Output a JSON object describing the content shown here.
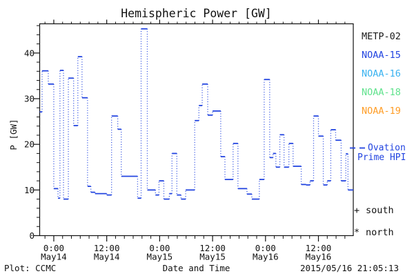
{
  "footer": {
    "left": "Plot: CCMC",
    "right": "2015/05/16 21:05:13"
  },
  "legend": {
    "satellites": [
      {
        "label": "METP-02",
        "color": "#1a1a1a"
      },
      {
        "label": "NOAA-15",
        "color": "#2244e0"
      },
      {
        "label": "NOAA-16",
        "color": "#38b2f0"
      },
      {
        "label": "NOAA-18",
        "color": "#5fe28c"
      },
      {
        "label": "NOAA-19",
        "color": "#ff9d26"
      }
    ],
    "model": {
      "label_line1": "Ovation",
      "label_line2": "Prime HPI",
      "color": "#2244e0"
    },
    "markers": [
      {
        "symbol": "+",
        "label": "south"
      },
      {
        "symbol": "*",
        "label": "north"
      }
    ]
  },
  "chart_data": {
    "type": "line",
    "subtype": "histogram-step, dotted vertical connectors",
    "title": "Hemispheric Power [GW]",
    "xlabel": "Date and Time",
    "ylabel": "P [GW]",
    "grid": false,
    "y_range": [
      0,
      46.4
    ],
    "y_major_ticks": [
      0,
      10,
      20,
      30,
      40
    ],
    "y_minor_step": 2,
    "t_range_hours": [
      -3.2,
      67.9
    ],
    "t_reference": "hours from 2015 May 14 00:00",
    "x_major_ticks": [
      {
        "t": 0,
        "time": "0:00",
        "date": "May14"
      },
      {
        "t": 12,
        "time": "12:00",
        "date": "May14"
      },
      {
        "t": 24,
        "time": "0:00",
        "date": "May15"
      },
      {
        "t": 36,
        "time": "12:00",
        "date": "May15"
      },
      {
        "t": 48,
        "time": "0:00",
        "date": "May16"
      },
      {
        "t": 60,
        "time": "12:00",
        "date": "May16"
      }
    ],
    "x_minor_step_hours": 2,
    "series": [
      {
        "name": "Ovation Prime HPI",
        "color": "#2244e0",
        "samples": [
          [
            -3.2,
            27.1
          ],
          [
            -2.65,
            36.1
          ],
          [
            -1.25,
            33.2
          ],
          [
            0,
            10.3
          ],
          [
            0.95,
            8.2
          ],
          [
            1.4,
            36.2
          ],
          [
            2.2,
            8
          ],
          [
            3.3,
            34.5
          ],
          [
            4.5,
            24.1
          ],
          [
            5.45,
            39.2
          ],
          [
            6.4,
            30.2
          ],
          [
            7.65,
            10.8
          ],
          [
            8.4,
            9.5
          ],
          [
            9.35,
            9.2
          ],
          [
            12,
            8.9
          ],
          [
            13.1,
            26.2
          ],
          [
            14.5,
            23.3
          ],
          [
            15.3,
            13
          ],
          [
            19,
            8.2
          ],
          [
            19.8,
            45.3
          ],
          [
            21.2,
            10
          ],
          [
            23.05,
            8.9
          ],
          [
            23.85,
            12
          ],
          [
            24.95,
            8
          ],
          [
            26.2,
            9.2
          ],
          [
            26.8,
            18
          ],
          [
            27.9,
            8.9
          ],
          [
            28.85,
            8
          ],
          [
            29.9,
            10
          ],
          [
            31.95,
            25.2
          ],
          [
            32.9,
            28.5
          ],
          [
            33.65,
            33.2
          ],
          [
            34.9,
            26.4
          ],
          [
            36,
            27.3
          ],
          [
            37.85,
            17.3
          ],
          [
            38.8,
            12.3
          ],
          [
            40.65,
            20.2
          ],
          [
            41.75,
            10.3
          ],
          [
            43.8,
            9.1
          ],
          [
            44.9,
            8
          ],
          [
            46.6,
            12.3
          ],
          [
            47.7,
            34.2
          ],
          [
            48.95,
            17.1
          ],
          [
            49.7,
            18
          ],
          [
            50.35,
            15
          ],
          [
            51.25,
            22.1
          ],
          [
            52.2,
            15
          ],
          [
            53.3,
            20.2
          ],
          [
            54.25,
            15.2
          ],
          [
            56.1,
            11.2
          ],
          [
            57.2,
            11.1
          ],
          [
            58.1,
            12
          ],
          [
            58.9,
            26.2
          ],
          [
            60,
            21.8
          ],
          [
            61.1,
            11.1
          ],
          [
            62,
            12
          ],
          [
            62.8,
            23.2
          ],
          [
            63.9,
            20.9
          ],
          [
            65.15,
            12
          ],
          [
            66.2,
            17.9
          ],
          [
            66.7,
            10
          ]
        ]
      }
    ]
  }
}
